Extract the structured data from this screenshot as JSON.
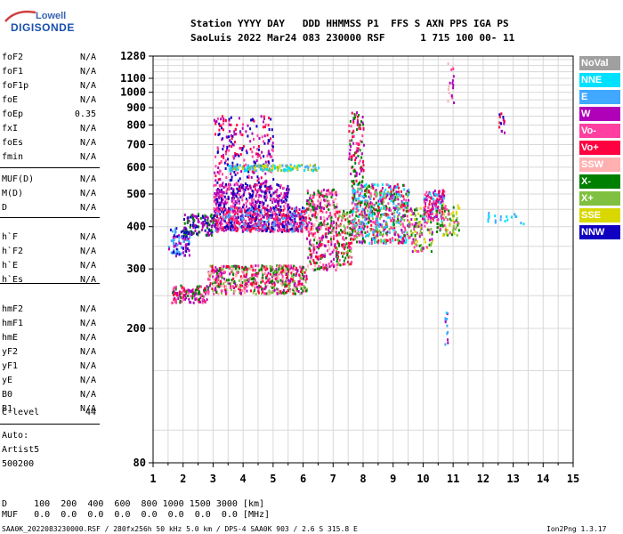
{
  "logo": {
    "line1": "Lowell",
    "line2": "DIGISONDE"
  },
  "header": {
    "row1": "Station YYYY DAY   DDD HHMMSS P1  FFS S AXN PPS IGA PS",
    "row2": "SaoLuis 2022 Mar24 083 230000 RSF      1 715 100 00- 11"
  },
  "params": [
    {
      "name": "foF2",
      "value": "N/A"
    },
    {
      "name": "foF1",
      "value": "N/A"
    },
    {
      "name": "foF1p",
      "value": "N/A"
    },
    {
      "name": "foE",
      "value": "N/A"
    },
    {
      "name": "foEp",
      "value": "0.35"
    },
    {
      "name": "fxI",
      "value": "N/A"
    },
    {
      "name": "foEs",
      "value": "N/A"
    },
    {
      "name": "fmin",
      "value": "N/A"
    },
    {
      "name": "MUF(D)",
      "value": "N/A"
    },
    {
      "name": "M(D)",
      "value": "N/A"
    },
    {
      "name": "D",
      "value": "N/A"
    },
    {
      "name": "h`F",
      "value": "N/A"
    },
    {
      "name": "h`F2",
      "value": "N/A"
    },
    {
      "name": "h`E",
      "value": "N/A"
    },
    {
      "name": "h`Es",
      "value": "N/A"
    },
    {
      "name": "hmF2",
      "value": "N/A"
    },
    {
      "name": "hmF1",
      "value": "N/A"
    },
    {
      "name": "hmE",
      "value": "N/A"
    },
    {
      "name": "yF2",
      "value": "N/A"
    },
    {
      "name": "yF1",
      "value": "N/A"
    },
    {
      "name": "yE",
      "value": "N/A"
    },
    {
      "name": "B0",
      "value": "N/A"
    },
    {
      "name": "B1",
      "value": "N/A"
    },
    {
      "name": "C-level",
      "value": "44"
    }
  ],
  "auto": {
    "line1": "Auto:",
    "line2": "Artist5",
    "line3": "500200"
  },
  "footer": {
    "d_row": "D     100  200  400  600  800 1000 1500 3000 [km]",
    "muf_row": "MUF   0.0  0.0  0.0  0.0  0.0  0.0  0.0  0.0 [MHz]",
    "file_info": "SAA0K_2022083230000.RSF / 280fx256h 50 kHz 5.0 km / DPS-4 SAA0K 903 / 2.6 S 315.8 E",
    "version": "Ion2Png 1.3.17"
  },
  "legend": [
    {
      "label": "NoVal",
      "color": "#a0a0a0"
    },
    {
      "label": "NNE",
      "color": "#00e0ff"
    },
    {
      "label": "E",
      "color": "#40a8ff"
    },
    {
      "label": "W",
      "color": "#b000b8"
    },
    {
      "label": "Vo-",
      "color": "#ff40a0"
    },
    {
      "label": "Vo+",
      "color": "#ff0040"
    },
    {
      "label": "SSW",
      "color": "#ffb0b0"
    },
    {
      "label": "X-",
      "color": "#008000"
    },
    {
      "label": "X+",
      "color": "#80c040"
    },
    {
      "label": "SSE",
      "color": "#d8d800"
    },
    {
      "label": "NNW",
      "color": "#1000c0"
    }
  ],
  "chart_data": {
    "type": "scatter",
    "title": "",
    "xlabel": "",
    "ylabel": "",
    "xlim": [
      1,
      15
    ],
    "ylim": [
      80,
      1280
    ],
    "y_scale": "log",
    "x_ticks": [
      1,
      2,
      3,
      4,
      5,
      6,
      7,
      8,
      9,
      10,
      11,
      12,
      13,
      14,
      15
    ],
    "y_ticks": [
      80,
      200,
      300,
      400,
      500,
      600,
      700,
      800,
      900,
      1000,
      1100,
      1280
    ],
    "grid": true,
    "legend_position": "right",
    "clusters": [
      {
        "x": [
          1.5,
          2.2
        ],
        "y": [
          330,
          400
        ],
        "n": 90,
        "colors": [
          10,
          3,
          2
        ]
      },
      {
        "x": [
          2.0,
          3.0
        ],
        "y": [
          380,
          440
        ],
        "n": 120,
        "colors": [
          10,
          3,
          7
        ]
      },
      {
        "x": [
          1.6,
          2.8
        ],
        "y": [
          240,
          270
        ],
        "n": 120,
        "colors": [
          4,
          5,
          3,
          7
        ]
      },
      {
        "x": [
          2.8,
          6.1
        ],
        "y": [
          255,
          310
        ],
        "n": 600,
        "colors": [
          5,
          4,
          3,
          7,
          8,
          6
        ]
      },
      {
        "x": [
          3.0,
          6.1
        ],
        "y": [
          390,
          460
        ],
        "n": 700,
        "colors": [
          3,
          10,
          4,
          2,
          5
        ]
      },
      {
        "x": [
          3.0,
          5.5
        ],
        "y": [
          460,
          540
        ],
        "n": 300,
        "colors": [
          3,
          4,
          10
        ]
      },
      {
        "x": [
          3.0,
          5.0
        ],
        "y": [
          520,
          860
        ],
        "n": 260,
        "colors": [
          3,
          4,
          5,
          10
        ]
      },
      {
        "x": [
          3.5,
          6.5
        ],
        "y": [
          590,
          615
        ],
        "n": 150,
        "colors": [
          9,
          1,
          2,
          8
        ]
      },
      {
        "x": [
          6.1,
          7.1
        ],
        "y": [
          300,
          520
        ],
        "n": 350,
        "colors": [
          5,
          4,
          3,
          7,
          6
        ]
      },
      {
        "x": [
          7.1,
          7.6
        ],
        "y": [
          310,
          450
        ],
        "n": 120,
        "colors": [
          5,
          4,
          7,
          8
        ]
      },
      {
        "x": [
          7.6,
          9.5
        ],
        "y": [
          360,
          540
        ],
        "n": 600,
        "colors": [
          2,
          4,
          3,
          5,
          1,
          7,
          8
        ]
      },
      {
        "x": [
          7.5,
          8.0
        ],
        "y": [
          540,
          880
        ],
        "n": 110,
        "colors": [
          4,
          3,
          5,
          7
        ]
      },
      {
        "x": [
          9.5,
          10.3
        ],
        "y": [
          340,
          460
        ],
        "n": 120,
        "colors": [
          9,
          4,
          3,
          7,
          8
        ]
      },
      {
        "x": [
          10.0,
          10.7
        ],
        "y": [
          420,
          520
        ],
        "n": 120,
        "colors": [
          3,
          4,
          5,
          1
        ]
      },
      {
        "x": [
          10.4,
          11.2
        ],
        "y": [
          380,
          470
        ],
        "n": 80,
        "colors": [
          9,
          8,
          7,
          4
        ]
      },
      {
        "x": [
          10.8,
          11.0
        ],
        "y": [
          900,
          1240
        ],
        "n": 18,
        "colors": [
          3,
          6,
          4
        ]
      },
      {
        "x": [
          10.7,
          10.8
        ],
        "y": [
          180,
          230
        ],
        "n": 12,
        "colors": [
          1,
          3,
          2
        ]
      },
      {
        "x": [
          12.5,
          12.7
        ],
        "y": [
          760,
          880
        ],
        "n": 14,
        "colors": [
          3,
          10,
          5
        ]
      },
      {
        "x": [
          12.1,
          13.4
        ],
        "y": [
          410,
          445
        ],
        "n": 20,
        "colors": [
          1,
          2
        ]
      }
    ]
  }
}
